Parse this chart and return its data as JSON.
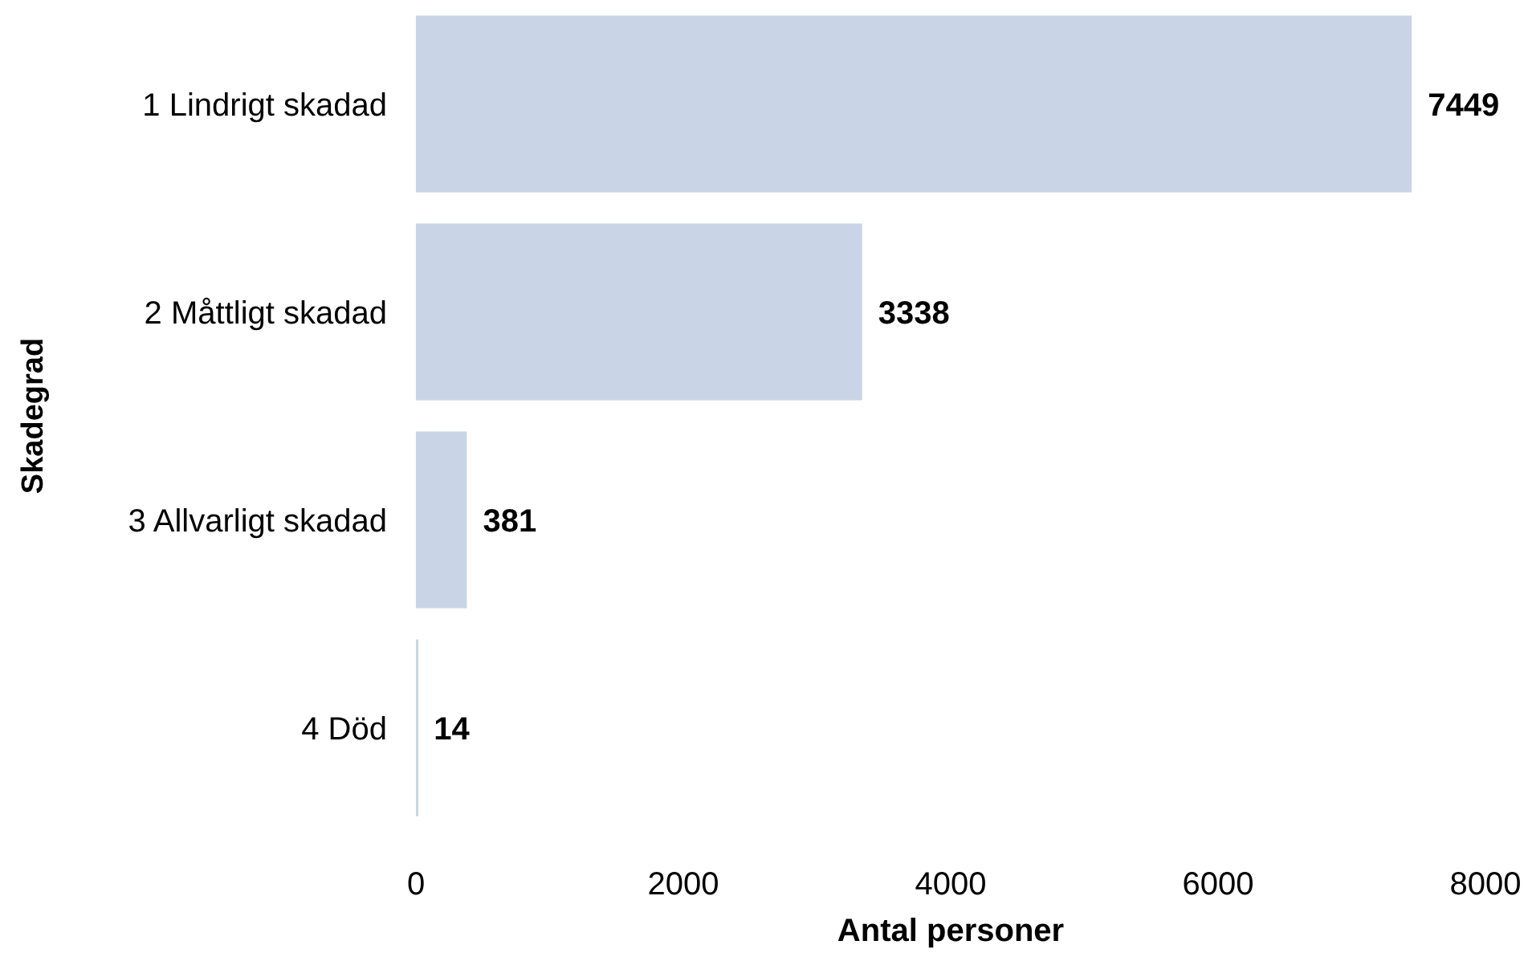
{
  "chart_data": {
    "type": "bar",
    "orientation": "horizontal",
    "categories": [
      "1 Lindrigt skadad",
      "2 Måttligt skadad",
      "3 Allvarligt skadad",
      "4 Död"
    ],
    "values": [
      7449,
      3338,
      381,
      14
    ],
    "color": "#c9d5e6",
    "xlim": [
      0,
      8000
    ],
    "xticks": [
      0,
      2000,
      4000,
      6000,
      8000
    ],
    "xlabel": "Antal personer",
    "ylabel": "Skadegrad",
    "data_labels": true
  }
}
